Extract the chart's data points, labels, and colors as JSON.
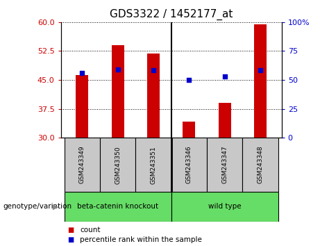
{
  "title": "GDS3322 / 1452177_at",
  "samples": [
    "GSM243349",
    "GSM243350",
    "GSM243351",
    "GSM243346",
    "GSM243347",
    "GSM243348"
  ],
  "bar_values": [
    46.2,
    54.0,
    51.8,
    34.2,
    39.0,
    59.5
  ],
  "bar_bottom": 30,
  "pct_left_y": [
    46.8,
    47.8,
    47.5,
    45.0,
    46.0,
    47.5
  ],
  "left_ylim": [
    30,
    60
  ],
  "left_yticks": [
    30,
    37.5,
    45,
    52.5,
    60
  ],
  "right_ylim": [
    0,
    100
  ],
  "right_yticks": [
    0,
    25,
    50,
    75,
    100
  ],
  "right_yticklabels": [
    "0",
    "25",
    "50",
    "75",
    "100%"
  ],
  "bar_color": "#CC0000",
  "dot_color": "#0000CC",
  "left_tick_color": "#CC0000",
  "right_tick_color": "#0000CC",
  "bg_label": "#C8C8C8",
  "bg_group": "#66DD66",
  "legend_items": [
    "count",
    "percentile rank within the sample"
  ],
  "legend_colors": [
    "#CC0000",
    "#0000CC"
  ],
  "group_label": "genotype/variation",
  "separator_idx": 3,
  "title_fontsize": 11,
  "tick_fontsize": 8,
  "bar_width": 0.35
}
